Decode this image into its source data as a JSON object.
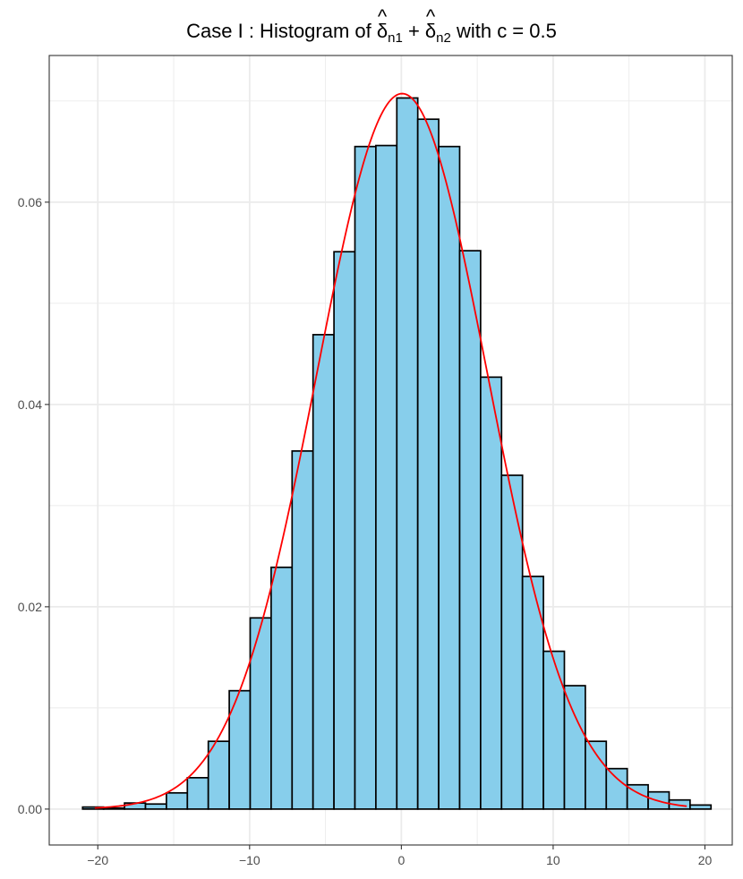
{
  "chart_data": {
    "type": "bar",
    "title": {
      "prefix": "Case I : Histogram of ",
      "term1": "δ",
      "sub1": "n1",
      "plus": " + ",
      "term2": "δ",
      "sub2": "n2",
      "hat": "^",
      "suffix": " with c = 0.5"
    },
    "xlabel": "",
    "ylabel": "",
    "xlim": [
      -23.2,
      21.8
    ],
    "ylim": [
      -0.00355,
      0.0745
    ],
    "xticks": [
      -20,
      -10,
      0,
      10,
      20
    ],
    "xtick_labels": [
      "−20",
      "−10",
      "0",
      "10",
      "20"
    ],
    "yticks": [
      0.0,
      0.02,
      0.04,
      0.06
    ],
    "ytick_labels": [
      "0.00",
      "0.02",
      "0.04",
      "0.06"
    ],
    "grid": true,
    "bin_width": 1.38,
    "bins": [
      {
        "x0": -21.0,
        "x1": -19.62,
        "density": 0.0002
      },
      {
        "x0": -19.62,
        "x1": -18.24,
        "density": 0.0001
      },
      {
        "x0": -18.24,
        "x1": -16.86,
        "density": 0.0006
      },
      {
        "x0": -16.86,
        "x1": -15.48,
        "density": 0.0005
      },
      {
        "x0": -15.48,
        "x1": -14.1,
        "density": 0.0016
      },
      {
        "x0": -14.1,
        "x1": -12.72,
        "density": 0.0031
      },
      {
        "x0": -12.72,
        "x1": -11.34,
        "density": 0.0067
      },
      {
        "x0": -11.34,
        "x1": -9.96,
        "density": 0.0117
      },
      {
        "x0": -9.96,
        "x1": -8.58,
        "density": 0.0189
      },
      {
        "x0": -8.58,
        "x1": -7.2,
        "density": 0.0239
      },
      {
        "x0": -7.2,
        "x1": -5.82,
        "density": 0.0354
      },
      {
        "x0": -5.82,
        "x1": -4.44,
        "density": 0.0469
      },
      {
        "x0": -4.44,
        "x1": -3.06,
        "density": 0.0551
      },
      {
        "x0": -3.06,
        "x1": -1.68,
        "density": 0.0655
      },
      {
        "x0": -1.68,
        "x1": -0.3,
        "density": 0.0656
      },
      {
        "x0": -0.3,
        "x1": 1.08,
        "density": 0.0703
      },
      {
        "x0": 1.08,
        "x1": 2.46,
        "density": 0.0682
      },
      {
        "x0": 2.46,
        "x1": 3.84,
        "density": 0.0655
      },
      {
        "x0": 3.84,
        "x1": 5.22,
        "density": 0.0552
      },
      {
        "x0": 5.22,
        "x1": 6.6,
        "density": 0.0427
      },
      {
        "x0": 6.6,
        "x1": 7.98,
        "density": 0.033
      },
      {
        "x0": 7.98,
        "x1": 9.36,
        "density": 0.023
      },
      {
        "x0": 9.36,
        "x1": 10.74,
        "density": 0.0156
      },
      {
        "x0": 10.74,
        "x1": 12.12,
        "density": 0.0122
      },
      {
        "x0": 12.12,
        "x1": 13.5,
        "density": 0.0067
      },
      {
        "x0": 13.5,
        "x1": 14.88,
        "density": 0.004
      },
      {
        "x0": 14.88,
        "x1": 16.26,
        "density": 0.0024
      },
      {
        "x0": 16.26,
        "x1": 17.64,
        "density": 0.0017
      },
      {
        "x0": 17.64,
        "x1": 19.02,
        "density": 0.0009
      },
      {
        "x0": 19.02,
        "x1": 20.4,
        "density": 0.0004
      }
    ],
    "density_curve": {
      "distribution": "normal",
      "mean": 0.05,
      "sd": 5.64,
      "x_range": [
        -20.2,
        18.8
      ]
    },
    "colors": {
      "bar_fill": "#87CEEB",
      "bar_stroke": "#000000",
      "curve": "#FF0000",
      "grid": "#EBEBEB",
      "panel_border": "#333333",
      "tick_text": "#4D4D4D"
    }
  }
}
